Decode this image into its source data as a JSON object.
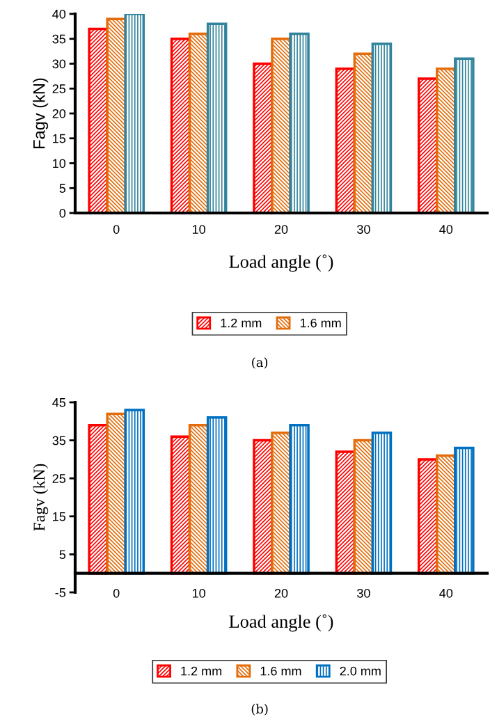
{
  "chart_data": [
    {
      "type": "bar",
      "categories": [
        "0",
        "10",
        "20",
        "30",
        "40"
      ],
      "xlabel": "Load angle (˚)",
      "ylabel": "Fagv (kN)",
      "ylim": [
        0,
        40
      ],
      "yticks": [
        0,
        5,
        10,
        15,
        20,
        25,
        30,
        35,
        40
      ],
      "grid": false,
      "legend": "bottom",
      "annotations": [
        "(a)"
      ],
      "series": [
        {
          "name": "1.2 mm",
          "color": "#ff0000",
          "values": [
            37,
            35,
            30,
            29,
            27
          ]
        },
        {
          "name": "1.6 mm",
          "color": "#e46c0a",
          "values": [
            39,
            36,
            35,
            32,
            29
          ]
        },
        {
          "color": "#31849b",
          "values": [
            40,
            38,
            36,
            34,
            31
          ]
        }
      ]
    },
    {
      "type": "bar",
      "categories": [
        "0",
        "10",
        "20",
        "30",
        "40"
      ],
      "xlabel": "Load angle (˚)",
      "ylabel": "Fagv (kN)",
      "ylim": [
        -5,
        45
      ],
      "yticks": [
        -5,
        5,
        15,
        25,
        35,
        45
      ],
      "grid": false,
      "legend": "bottom",
      "annotations": [
        "(b)"
      ],
      "series": [
        {
          "name": "1.2 mm",
          "color": "#ff0000",
          "values": [
            39,
            36,
            35,
            32,
            30
          ]
        },
        {
          "name": "1.6 mm",
          "color": "#e46c0a",
          "values": [
            42,
            39,
            37,
            35,
            31
          ]
        },
        {
          "name": "2.0 mm",
          "color": "#0070c0",
          "values": [
            43,
            41,
            39,
            37,
            33
          ]
        }
      ]
    }
  ]
}
